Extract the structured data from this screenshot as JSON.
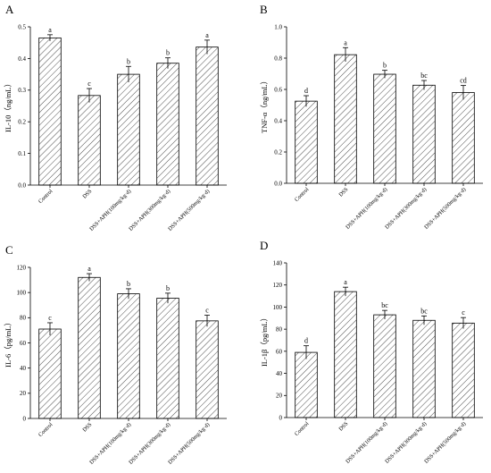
{
  "chart_data": [
    {
      "type": "bar",
      "panel": "A",
      "ylabel": "IL-10（ng/mL）",
      "ylim": [
        0,
        0.5
      ],
      "yticks": [
        "0.0",
        "0.1",
        "0.2",
        "0.3",
        "0.4",
        "0.5"
      ],
      "categories": [
        "Control",
        "DSS",
        "DSS+APH(100mg/kg·d)",
        "DSS+APH(300mg/kg·d)",
        "DSS+APH(500mg/kg·d)"
      ],
      "values": [
        0.465,
        0.283,
        0.35,
        0.385,
        0.436
      ],
      "errors": [
        0.01,
        0.022,
        0.025,
        0.017,
        0.022
      ],
      "labels": [
        "a",
        "c",
        "b",
        "b",
        "a"
      ],
      "pattern": "diagonal-hatch"
    },
    {
      "type": "bar",
      "panel": "B",
      "ylabel": "TNF-α（ng/mL）",
      "ylim": [
        0,
        1.0
      ],
      "yticks": [
        "0.0",
        "0.2",
        "0.4",
        "0.6",
        "0.8",
        "1.0"
      ],
      "categories": [
        "Control",
        "DSS",
        "DSS+APH(100mg/kg·d)",
        "DSS+APH(300mg/kg·d)",
        "DSS+APH(500mg/kg·d)"
      ],
      "values": [
        0.525,
        0.822,
        0.697,
        0.627,
        0.58
      ],
      "errors": [
        0.035,
        0.045,
        0.025,
        0.03,
        0.045
      ],
      "labels": [
        "d",
        "a",
        "b",
        "bc",
        "cd"
      ],
      "pattern": "diagonal-hatch"
    },
    {
      "type": "bar",
      "panel": "C",
      "ylabel": "IL-6（pg/mL）",
      "ylim": [
        0,
        120
      ],
      "yticks": [
        "0",
        "20",
        "40",
        "60",
        "80",
        "100",
        "120"
      ],
      "categories": [
        "Control",
        "DSS",
        "DSS+APH(100mg/kg·d)",
        "DSS+APH(300mg/kg·d)",
        "DSS+APH(500mg/kg·d)"
      ],
      "values": [
        71,
        112,
        99,
        95.5,
        77.5
      ],
      "errors": [
        5,
        3,
        4,
        4,
        4.5
      ],
      "labels": [
        "c",
        "a",
        "b",
        "b",
        "c"
      ],
      "pattern": "diagonal-hatch"
    },
    {
      "type": "bar",
      "panel": "D",
      "ylabel": "IL-1β（pg/mL）",
      "ylim": [
        0,
        140
      ],
      "yticks": [
        "0",
        "20",
        "40",
        "60",
        "80",
        "100",
        "120",
        "140"
      ],
      "categories": [
        "Control",
        "DSS",
        "DSS+APH(100mg/kg·d)",
        "DSS+APH(300mg/kg·d)",
        "DSS+APH(500mg/kg·d)"
      ],
      "values": [
        59,
        114,
        93,
        88,
        85.5
      ],
      "errors": [
        6,
        4,
        4,
        4,
        5
      ],
      "labels": [
        "d",
        "a",
        "bc",
        "bc",
        "c"
      ],
      "pattern": "diagonal-hatch"
    }
  ]
}
